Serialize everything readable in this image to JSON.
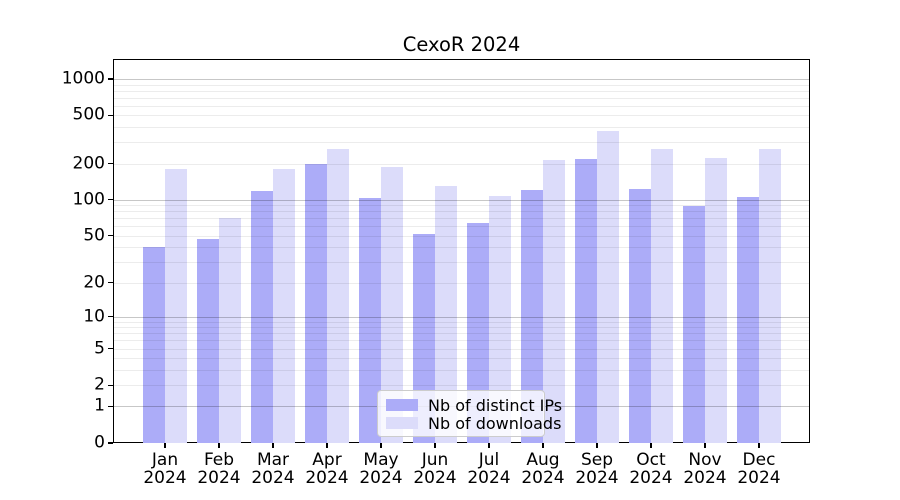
{
  "title": "CexoR 2024",
  "colors": {
    "ips_bar": "#acacf8",
    "downloads_bar": "#dcdcfa",
    "axis": "#000000",
    "grid_major": "#c7c7c7",
    "grid_minor": "#ebebeb",
    "legend_border": "#cccccc"
  },
  "legend": {
    "items": [
      {
        "label": "Nb of distinct IPs",
        "color_key": "ips_bar"
      },
      {
        "label": "Nb of downloads",
        "color_key": "downloads_bar"
      }
    ]
  },
  "y_axis": {
    "tick_labels": [
      "1000",
      "500",
      "200",
      "100",
      "50",
      "20",
      "10",
      "5",
      "2",
      "1",
      "0"
    ]
  },
  "x_axis": {
    "months": [
      "Jan",
      "Feb",
      "Mar",
      "Apr",
      "May",
      "Jun",
      "Jul",
      "Aug",
      "Sep",
      "Oct",
      "Nov",
      "Dec"
    ],
    "year": "2024"
  },
  "chart_data": {
    "type": "bar",
    "title": "CexoR 2024",
    "categories": [
      "Jan 2024",
      "Feb 2024",
      "Mar 2024",
      "Apr 2024",
      "May 2024",
      "Jun 2024",
      "Jul 2024",
      "Aug 2024",
      "Sep 2024",
      "Oct 2024",
      "Nov 2024",
      "Dec 2024"
    ],
    "series": [
      {
        "name": "Nb of distinct IPs",
        "color": "#acacf8",
        "values": [
          40,
          47,
          118,
          198,
          104,
          52,
          64,
          121,
          218,
          122,
          89,
          106
        ]
      },
      {
        "name": "Nb of downloads",
        "color": "#dcdcfa",
        "values": [
          180,
          70,
          180,
          264,
          188,
          131,
          107,
          214,
          372,
          264,
          222,
          263
        ]
      }
    ],
    "xlabel": "",
    "ylabel": "",
    "yscale": "pseudo-log (log10(value+1))",
    "yticks": [
      0,
      1,
      2,
      5,
      10,
      20,
      50,
      100,
      200,
      500,
      1000
    ],
    "grid_major_at": [
      1,
      10,
      100,
      1000
    ],
    "grid_minor_at": [
      2,
      3,
      4,
      5,
      6,
      7,
      8,
      9,
      20,
      30,
      40,
      50,
      60,
      70,
      80,
      90,
      200,
      300,
      400,
      500,
      600,
      700,
      800,
      900
    ],
    "ylim": [
      0,
      1460
    ],
    "grid": true,
    "legend_position": "lower center"
  }
}
